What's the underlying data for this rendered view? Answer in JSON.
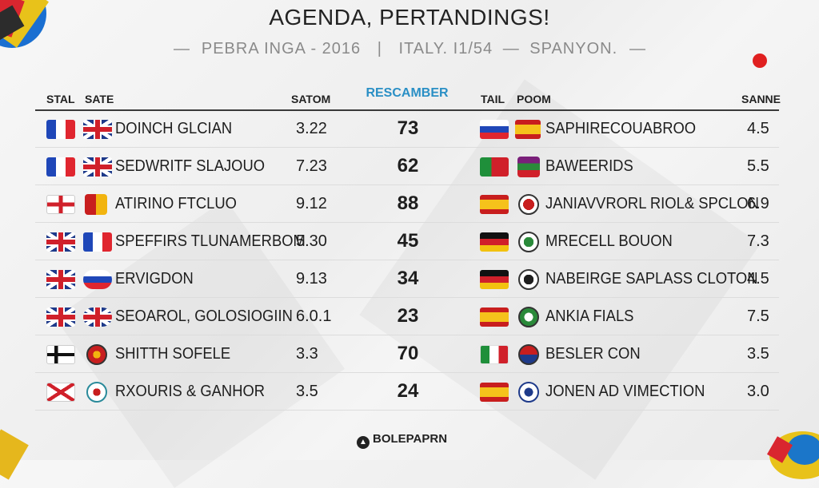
{
  "title": "AGENDA, PERTANDINGS!",
  "subtitle": {
    "left": "PEBRA INGA - 2016",
    "separator": "|",
    "right": "ITALY. I1/54",
    "dash": "—",
    "tail": "SPANYON."
  },
  "headers": {
    "left_col1": "STAL",
    "left_col2": "SATE",
    "left_score": "SATOM",
    "middle": "RESCAMBER",
    "right_col1": "TAIL",
    "right_col2": "POOM",
    "right_score": "SANNE"
  },
  "rows": [
    {
      "left_team": "DOINCH GLCIAN",
      "left_value": "3.22",
      "middle": "73",
      "right_team": "SAPHIRECOUABROO",
      "right_value": "4.5"
    },
    {
      "left_team": "SEDWRITF SLAJOUO",
      "left_value": "7.23",
      "middle": "62",
      "right_team": "BAWEERIDS",
      "right_value": "5.5"
    },
    {
      "left_team": "ATIRINO FTCLUO",
      "left_value": "9.12",
      "middle": "88",
      "right_team": "JANIAVVRORL RIOL& SPCLON",
      "right_value": "6.9"
    },
    {
      "left_team": "SPEFFIRS TLUNAMERBOM",
      "left_value": "5.30",
      "middle": "45",
      "right_team": "MRECELL BOUON",
      "right_value": "7.3"
    },
    {
      "left_team": "ERVIGDON",
      "left_value": "9.13",
      "middle": "34",
      "right_team": "NABEIRGE SAPLASS CLOTON",
      "right_value": "4.5"
    },
    {
      "left_team": "SEOAROL, GOLOSIOGIIN",
      "left_value": "6.0.1",
      "middle": "23",
      "right_team": "ANKIA FIALS",
      "right_value": "7.5"
    },
    {
      "left_team": "SHITTH SOFELE",
      "left_value": "3.3",
      "middle": "70",
      "right_team": "BESLER CON",
      "right_value": "3.5"
    },
    {
      "left_team": "RXOURIS & GANHOR",
      "left_value": "3.5",
      "middle": "24",
      "right_team": "JONEN AD VIMECTION",
      "right_value": "3.0"
    }
  ],
  "footer": {
    "brand": "BOLEPAPRN"
  },
  "colors": {
    "accent_header": "#2a8fc5",
    "dot": "#e02020"
  }
}
